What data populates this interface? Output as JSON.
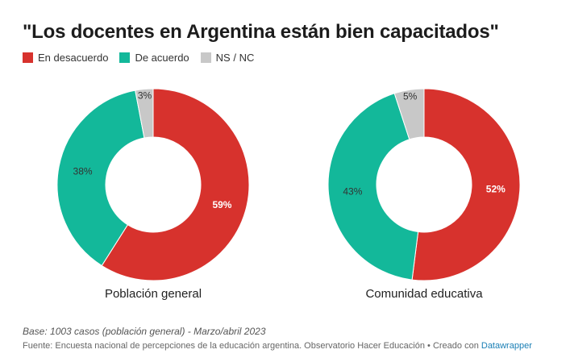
{
  "title": "\"Los docentes en Argentina están bien capacitados\"",
  "legend": [
    {
      "label": "En desacuerdo",
      "color": "#d7322d"
    },
    {
      "label": "De acuerdo",
      "color": "#13b89a"
    },
    {
      "label": "NS / NC",
      "color": "#c8c8c8"
    }
  ],
  "chart_data": [
    {
      "type": "pie",
      "donut": true,
      "title": "Población general",
      "categories": [
        "En desacuerdo",
        "De acuerdo",
        "NS / NC"
      ],
      "values": [
        59,
        38,
        3
      ],
      "labels": [
        "59%",
        "38%",
        "3%"
      ],
      "colors": [
        "#d7322d",
        "#13b89a",
        "#c8c8c8"
      ]
    },
    {
      "type": "pie",
      "donut": true,
      "title": "Comunidad educativa",
      "categories": [
        "En desacuerdo",
        "De acuerdo",
        "NS / NC"
      ],
      "values": [
        52,
        43,
        5
      ],
      "labels": [
        "52%",
        "43%",
        "5%"
      ],
      "colors": [
        "#d7322d",
        "#13b89a",
        "#c8c8c8"
      ]
    }
  ],
  "footer": {
    "note": "Base: 1003 casos (población general) - Marzo/abril 2023",
    "source_text": "Fuente: Encuesta nacional de percepciones de la educación argentina. Observatorio Hacer Educación • Creado con ",
    "credit_link": "Datawrapper"
  }
}
